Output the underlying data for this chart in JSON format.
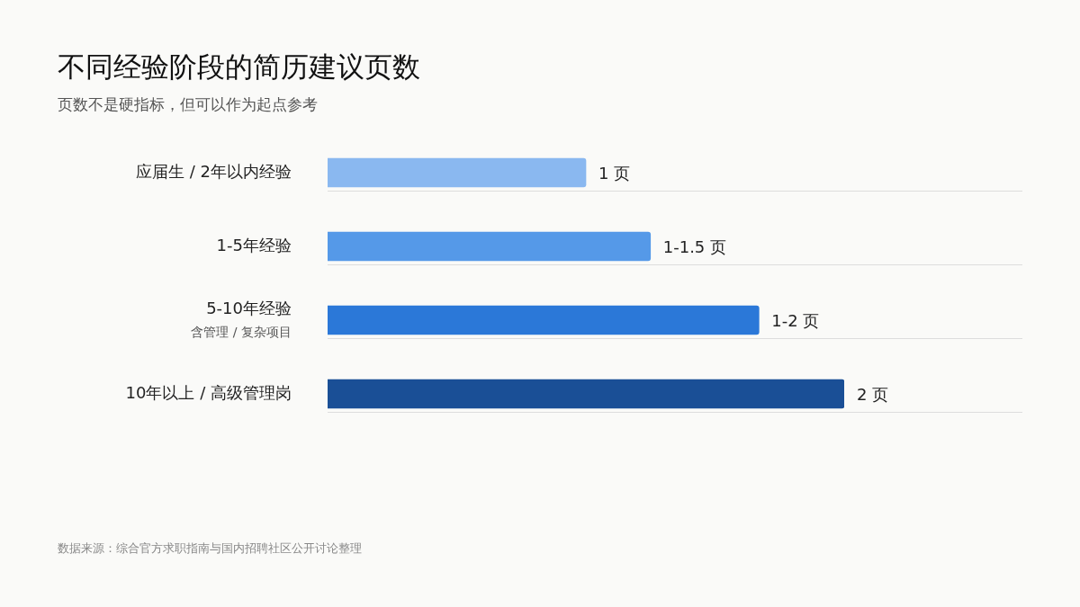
{
  "chart_data": {
    "type": "bar",
    "orientation": "horizontal",
    "title": "不同经验阶段的简历建议页数",
    "subtitle": "页数不是硬指标，但可以作为起点参考",
    "categories": [
      "应届生 / 2年以内经验",
      "1-5年经验",
      "5-10年经验",
      "10年以上 / 高级管理岗"
    ],
    "values": [
      1,
      1.25,
      1.67,
      2
    ],
    "colors": [
      "#8ab8f0",
      "#5599e8",
      "#2b78d8",
      "#1a4f96"
    ],
    "value_labels": [
      "1 页",
      "1-1.5 页",
      "1-2 页",
      "2 页"
    ],
    "grid": "y",
    "legend": false,
    "annotations": [
      "含管理 / 复杂项目",
      "数据来源：综合官方求职指南与国内招聘社区公开讨论整理"
    ]
  }
}
